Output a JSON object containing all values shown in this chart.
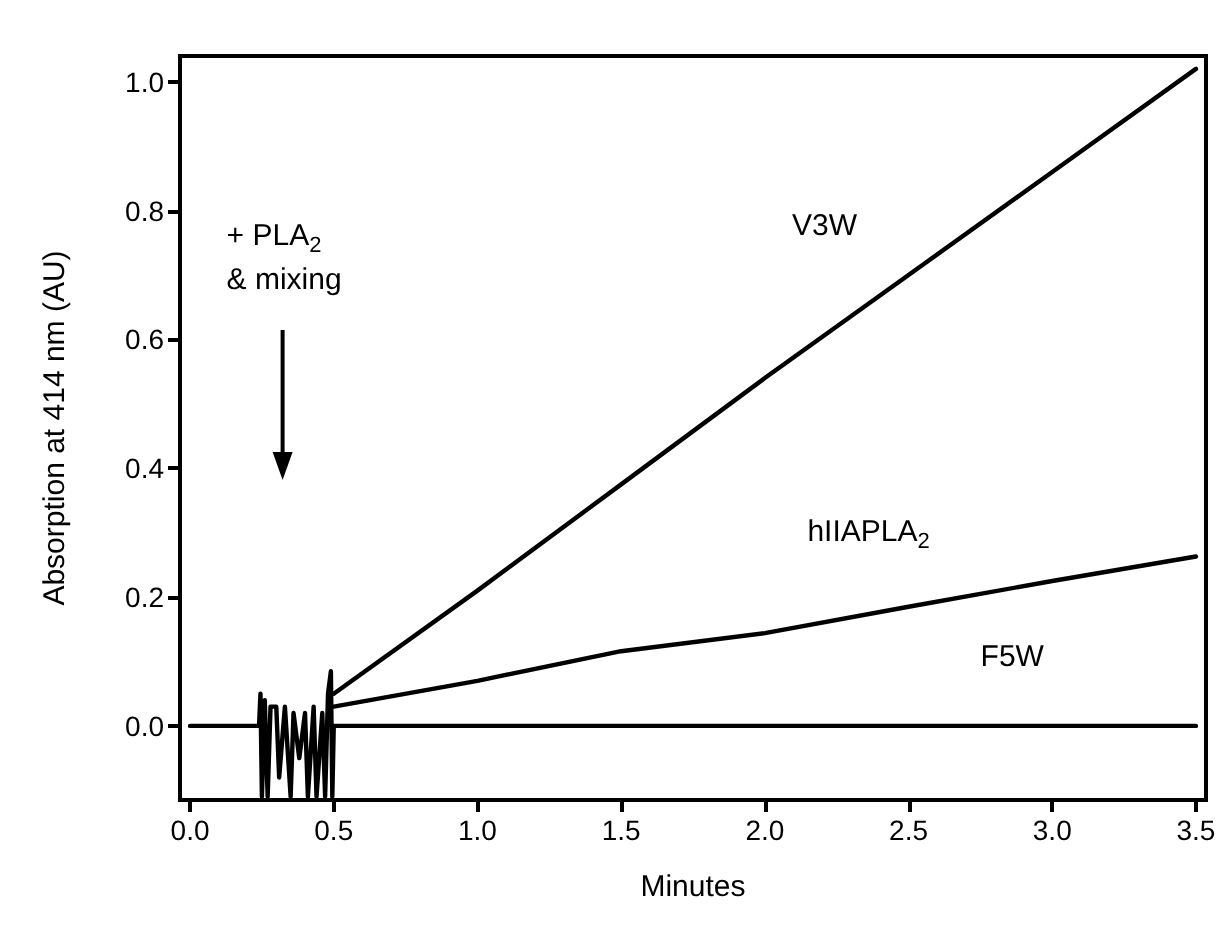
{
  "chart_data": {
    "type": "line",
    "xlabel": "Minutes",
    "ylabel": "Absorption at 414 nm (AU)",
    "xlim": [
      -0.035,
      3.535
    ],
    "ylim": [
      -0.115,
      1.04
    ],
    "xticks": [
      {
        "value": 0,
        "label": "0.0"
      },
      {
        "value": 0.5,
        "label": "0.5"
      },
      {
        "value": 1,
        "label": "1.0"
      },
      {
        "value": 1.5,
        "label": "1.5"
      },
      {
        "value": 2,
        "label": "2.0"
      },
      {
        "value": 2.5,
        "label": "2.5"
      },
      {
        "value": 3,
        "label": "3.0"
      },
      {
        "value": 3.5,
        "label": "3.5"
      }
    ],
    "yticks": [
      {
        "value": 0,
        "label": "0.0"
      },
      {
        "value": 0.2,
        "label": "0.2"
      },
      {
        "value": 0.4,
        "label": "0.4"
      },
      {
        "value": 0.6,
        "label": "0.6"
      },
      {
        "value": 0.8,
        "label": "0.8"
      },
      {
        "value": 1,
        "label": "1.0"
      }
    ],
    "series": [
      {
        "name": "V3W",
        "color": "#000000",
        "x": [
          0.5,
          1.0,
          1.5,
          2.0,
          2.5,
          3.0,
          3.5
        ],
        "values": [
          0.05,
          0.21,
          0.375,
          0.54,
          0.7,
          0.86,
          1.02
        ]
      },
      {
        "name": "hIIAPLA$_{2}$",
        "color": "#000000",
        "x": [
          0.5,
          1.0,
          1.5,
          2.0,
          2.5,
          3.0,
          3.5
        ],
        "values": [
          0.03,
          0.07,
          0.116,
          0.144,
          0.185,
          0.225,
          0.263
        ]
      },
      {
        "name": "F5W",
        "color": "#000000",
        "x": [
          0,
          0.24,
          0.245,
          0.25,
          0.26,
          0.27,
          0.28,
          0.3,
          0.31,
          0.33,
          0.35,
          0.36,
          0.38,
          0.4,
          0.41,
          0.43,
          0.44,
          0.46,
          0.47,
          0.48,
          0.49,
          0.495,
          0.5,
          1.0,
          2.0,
          3.0,
          3.5
        ],
        "values": [
          0,
          0,
          0.05,
          -0.11,
          0.04,
          -0.11,
          0.03,
          0.03,
          -0.08,
          0.03,
          -0.11,
          0.02,
          -0.05,
          0.02,
          -0.11,
          0.03,
          -0.11,
          0.02,
          -0.11,
          0.05,
          0.085,
          -0.11,
          0,
          0,
          0,
          0,
          0
        ]
      }
    ],
    "annotations": [
      "+ PLA$_{2}$\n& mixing"
    ],
    "grid": false,
    "legend": false,
    "marker": "none",
    "line_style": "solid"
  }
}
